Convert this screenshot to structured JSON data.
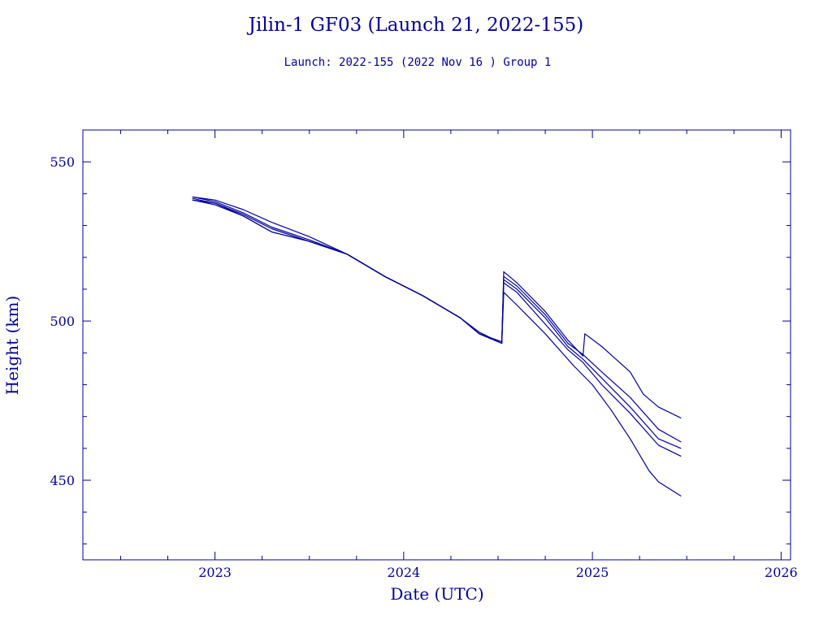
{
  "chart_data": {
    "type": "line",
    "title": "Jilin-1 GF03 (Launch 21, 2022-155)",
    "subtitle": "Launch: 2022-155  (2022 Nov 16 )  Group 1",
    "xlabel": "Date (UTC)",
    "ylabel": "Height (km)",
    "xlim": [
      2022.3,
      2026.05
    ],
    "ylim": [
      425,
      560
    ],
    "x_ticks": [
      2023,
      2024,
      2025,
      2026
    ],
    "x_tick_labels": [
      "2023",
      "2024",
      "2025",
      "2026"
    ],
    "y_ticks": [
      450,
      500,
      550
    ],
    "y_tick_labels": [
      "450",
      "500",
      "550"
    ],
    "grid": false,
    "line_color": "#0000a0",
    "series": [
      {
        "x": [
          2022.88,
          2023.0,
          2023.15,
          2023.3,
          2023.5,
          2023.7,
          2023.9,
          2024.1,
          2024.3,
          2024.4,
          2024.52,
          2024.53,
          2024.6,
          2024.75,
          2024.87,
          2024.95,
          2025.05,
          2025.2,
          2025.35,
          2025.47
        ],
        "values": [
          539,
          537.5,
          534,
          529.5,
          525.5,
          521,
          514,
          508,
          501,
          496.5,
          493,
          514,
          511,
          502,
          493,
          489.5,
          484,
          476,
          466,
          462
        ]
      },
      {
        "x": [
          2022.88,
          2023.0,
          2023.15,
          2023.3,
          2023.5,
          2023.7,
          2023.9,
          2024.1,
          2024.3,
          2024.4,
          2024.52,
          2024.53,
          2024.6,
          2024.75,
          2024.87,
          2024.95,
          2025.05,
          2025.2,
          2025.35,
          2025.47
        ],
        "values": [
          538.5,
          537,
          533.5,
          529,
          525,
          521,
          514,
          508,
          501,
          496,
          493.5,
          513,
          510,
          501,
          492,
          488,
          482,
          473,
          463,
          460
        ]
      },
      {
        "x": [
          2022.88,
          2023.0,
          2023.15,
          2023.3,
          2023.5,
          2023.7,
          2023.9,
          2024.1,
          2024.3,
          2024.4,
          2024.52,
          2024.53,
          2024.6,
          2024.75,
          2024.87,
          2024.95,
          2025.05,
          2025.2,
          2025.35,
          2025.47
        ],
        "values": [
          538,
          537,
          533,
          528,
          525,
          521,
          514,
          508,
          501,
          496,
          493,
          512,
          509,
          499,
          491,
          487,
          480,
          471,
          461,
          457.5
        ]
      },
      {
        "x": [
          2022.88,
          2023.0,
          2023.15,
          2023.3,
          2023.5,
          2023.7,
          2023.9,
          2024.1,
          2024.3,
          2024.4,
          2024.52,
          2024.53,
          2024.6,
          2024.75,
          2024.9,
          2025.0,
          2025.1,
          2025.2,
          2025.3,
          2025.35,
          2025.47
        ],
        "values": [
          538,
          536.5,
          533,
          528,
          525,
          521,
          514,
          508,
          501,
          496,
          493,
          509,
          505,
          496,
          486,
          480,
          472,
          463,
          453,
          449.5,
          445
        ]
      },
      {
        "x": [
          2022.88,
          2023.0,
          2023.15,
          2023.3,
          2023.5,
          2023.7,
          2023.9,
          2024.1,
          2024.3,
          2024.4,
          2024.52,
          2024.53,
          2024.6,
          2024.75,
          2024.87,
          2024.95,
          2024.96,
          2025.05,
          2025.2,
          2025.27,
          2025.35,
          2025.47
        ],
        "values": [
          539,
          538,
          535,
          531,
          526.5,
          521,
          514,
          508,
          501,
          496,
          493,
          515.5,
          512,
          503,
          494,
          489,
          496,
          492,
          484,
          477,
          473,
          469.5
        ]
      }
    ]
  }
}
